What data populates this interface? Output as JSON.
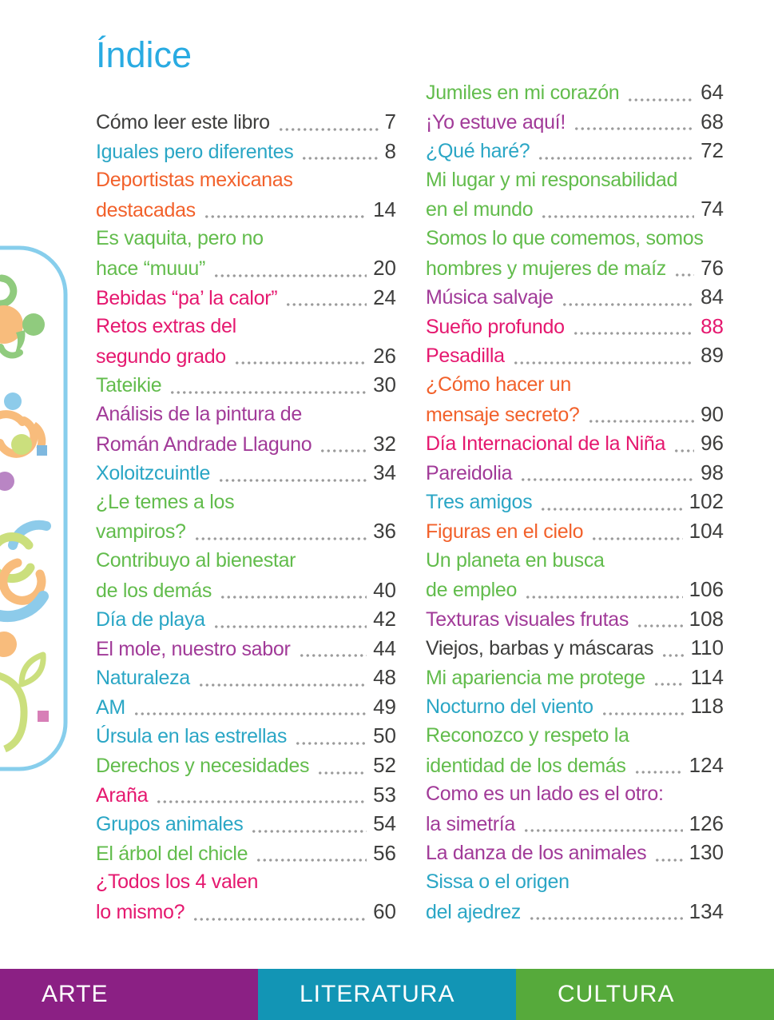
{
  "page_title": "Índice",
  "colors": {
    "title": "#29ABE2",
    "dark": "#3E3E3D",
    "teal": "#2AA6C5",
    "green": "#62BC4C",
    "orange": "#F2612B",
    "pink": "#E5186F",
    "purple": "#A13A98",
    "dots": "#9B9B9B"
  },
  "toc": {
    "left_column": [
      {
        "lines": [
          "Cómo leer este libro"
        ],
        "page": "7",
        "color": "dark"
      },
      {
        "lines": [
          "Iguales pero diferentes"
        ],
        "page": "8",
        "color": "teal"
      },
      {
        "lines": [
          "Deportistas mexicanas",
          "destacadas"
        ],
        "page": "14",
        "color": "orange"
      },
      {
        "lines": [
          "Es vaquita, pero no",
          "hace “muuu”"
        ],
        "page": "20",
        "color": "green"
      },
      {
        "lines": [
          "Bebidas “pa’ la calor”"
        ],
        "page": "24",
        "color": "pink"
      },
      {
        "lines": [
          "Retos extras del",
          "segundo grado"
        ],
        "page": "26",
        "color": "pink"
      },
      {
        "lines": [
          "Tateikie"
        ],
        "page": "30",
        "color": "green"
      },
      {
        "lines": [
          "Análisis de la pintura de",
          "Román Andrade Llaguno"
        ],
        "page": "32",
        "color": "purple"
      },
      {
        "lines": [
          "Xoloitzcuintle"
        ],
        "page": "34",
        "color": "teal"
      },
      {
        "lines": [
          "¿Le temes a los",
          "vampiros?"
        ],
        "page": "36",
        "color": "green"
      },
      {
        "lines": [
          "Contribuyo al bienestar",
          "de los demás"
        ],
        "page": "40",
        "color": "green"
      },
      {
        "lines": [
          "Día de playa"
        ],
        "page": "42",
        "color": "teal"
      },
      {
        "lines": [
          "El mole, nuestro sabor"
        ],
        "page": "44",
        "color": "purple"
      },
      {
        "lines": [
          "Naturaleza"
        ],
        "page": "48",
        "color": "teal"
      },
      {
        "lines": [
          "AM"
        ],
        "page": "49",
        "color": "teal"
      },
      {
        "lines": [
          "Úrsula en las estrellas"
        ],
        "page": "50",
        "color": "teal"
      },
      {
        "lines": [
          "Derechos y necesidades"
        ],
        "page": "52",
        "color": "green"
      },
      {
        "lines": [
          "Araña"
        ],
        "page": "53",
        "color": "pink"
      },
      {
        "lines": [
          "Grupos animales"
        ],
        "page": "54",
        "color": "teal"
      },
      {
        "lines": [
          "El árbol del chicle"
        ],
        "page": "56",
        "color": "green"
      },
      {
        "lines": [
          "¿Todos los 4 valen",
          "lo mismo?"
        ],
        "page": "60",
        "color": "pink"
      }
    ],
    "right_column": [
      {
        "lines": [
          "Jumiles en mi corazón"
        ],
        "page": "64",
        "color": "green"
      },
      {
        "lines": [
          "¡Yo estuve aquí!"
        ],
        "page": "68",
        "color": "purple"
      },
      {
        "lines": [
          "¿Qué haré?"
        ],
        "page": "72",
        "color": "teal"
      },
      {
        "lines": [
          "Mi lugar y mi responsabilidad",
          "en el mundo"
        ],
        "page": "74",
        "color": "green"
      },
      {
        "lines": [
          "Somos lo que comemos, somos",
          "hombres y mujeres de maíz"
        ],
        "page": "76",
        "color": "green"
      },
      {
        "lines": [
          "Música salvaje"
        ],
        "page": "84",
        "color": "purple"
      },
      {
        "lines": [
          "Sueño profundo"
        ],
        "page": "88",
        "color": "pink",
        "page_color": "pink"
      },
      {
        "lines": [
          "Pesadilla"
        ],
        "page": "89",
        "color": "pink"
      },
      {
        "lines": [
          "¿Cómo hacer un",
          "mensaje secreto?"
        ],
        "page": "90",
        "color": "orange"
      },
      {
        "lines": [
          "Día Internacional de la Niña"
        ],
        "page": "96",
        "color": "pink"
      },
      {
        "lines": [
          "Pareidolia"
        ],
        "page": "98",
        "color": "purple"
      },
      {
        "lines": [
          "Tres amigos"
        ],
        "page": "102",
        "color": "teal"
      },
      {
        "lines": [
          "Figuras en el cielo"
        ],
        "page": "104",
        "color": "orange"
      },
      {
        "lines": [
          "Un planeta en busca",
          "de empleo"
        ],
        "page": "106",
        "color": "green"
      },
      {
        "lines": [
          "Texturas visuales frutas"
        ],
        "page": "108",
        "color": "purple"
      },
      {
        "lines": [
          "Viejos, barbas y máscaras"
        ],
        "page": "110",
        "color": "dark"
      },
      {
        "lines": [
          "Mi apariencia me protege"
        ],
        "page": "114",
        "color": "green"
      },
      {
        "lines": [
          "Nocturno del viento"
        ],
        "page": "118",
        "color": "teal"
      },
      {
        "lines": [
          "Reconozco y respeto la",
          "identidad de los demás"
        ],
        "page": "124",
        "color": "green"
      },
      {
        "lines": [
          "Como es un lado es el otro:",
          "la simetría"
        ],
        "page": "126",
        "color": "purple"
      },
      {
        "lines": [
          "La danza de los animales"
        ],
        "page": "130",
        "color": "purple"
      },
      {
        "lines": [
          "Sissa o el origen",
          "del ajedrez"
        ],
        "page": "134",
        "color": "teal"
      }
    ]
  },
  "footer": {
    "tabs": [
      {
        "label": "ARTE",
        "color": "#8B2084"
      },
      {
        "label": "LITERATURA",
        "color": "#1295B5"
      },
      {
        "label": "CULTURA",
        "color": "#56AA3B"
      }
    ]
  },
  "decoration": {
    "name": "rounded-border-with-pastel-doodles",
    "border_color": "#87CEEC"
  }
}
